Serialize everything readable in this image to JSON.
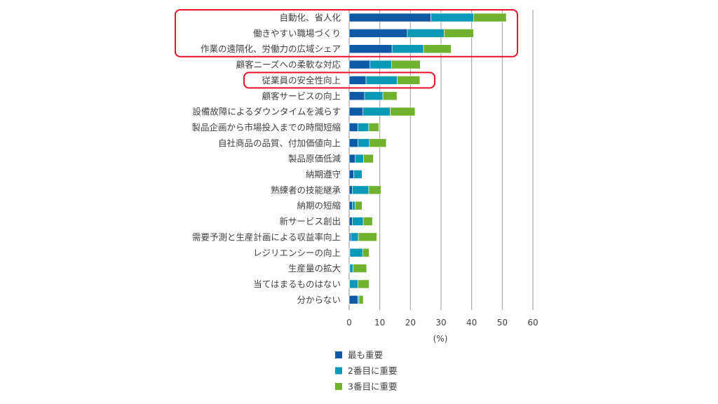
{
  "chart_data": {
    "type": "bar",
    "orientation": "horizontal",
    "stacked": true,
    "categories": [
      "自動化、省人化",
      "働きやすい職場づくり",
      "作業の遠隔化、労働力の広域シェア",
      "顧客ニーズへの柔軟な対応",
      "従業員の安全性向上",
      "顧客サービスの向上",
      "設備故障によるダウンタイムを減らす",
      "製品企画から市場投入までの時間短縮",
      "自社商品の品質、付加価値向上",
      "製品原価低減",
      "納期遵守",
      "熟練者の技能継承",
      "納期の短縮",
      "新サービス創出",
      "需要予測と生産計画による収益率向上",
      "レジリエンシーの向上",
      "生産量の拡大",
      "当てはまるものはない",
      "分からない"
    ],
    "series": [
      {
        "name": "最も重要",
        "color": "#0e5aa7",
        "values": [
          26.7,
          19.0,
          14.0,
          6.8,
          5.5,
          5.0,
          4.5,
          2.8,
          2.9,
          2.0,
          1.5,
          1.0,
          1.0,
          1.0,
          0.5,
          0.2,
          0.2,
          0.1,
          2.8
        ]
      },
      {
        "name": "2番目に重要",
        "color": "#0b99b8",
        "values": [
          14.0,
          12.0,
          10.3,
          7.0,
          10.2,
          6.0,
          8.9,
          3.6,
          3.7,
          2.7,
          2.7,
          5.4,
          0.9,
          3.6,
          2.5,
          4.2,
          1.1,
          2.8,
          0.4
        ]
      },
      {
        "name": "3番目に重要",
        "color": "#70b22d",
        "values": [
          10.6,
          9.6,
          9.0,
          9.4,
          7.4,
          4.6,
          8.1,
          3.3,
          5.5,
          3.2,
          0.0,
          4.0,
          2.3,
          3.0,
          6.0,
          2.1,
          4.4,
          3.6,
          1.4
        ]
      }
    ],
    "xlim": [
      0,
      60
    ],
    "xticks": [
      0,
      10,
      20,
      30,
      40,
      50,
      60
    ],
    "xlabel": "(%)",
    "grid": "vertical",
    "legend_position": "bottom-left",
    "highlighted_categories": [
      [
        "自動化、省人化",
        "働きやすい職場づくり",
        "作業の遠隔化、労働力の広域シェア"
      ],
      [
        "従業員の安全性向上"
      ]
    ],
    "highlight_color": "#e8102a"
  }
}
